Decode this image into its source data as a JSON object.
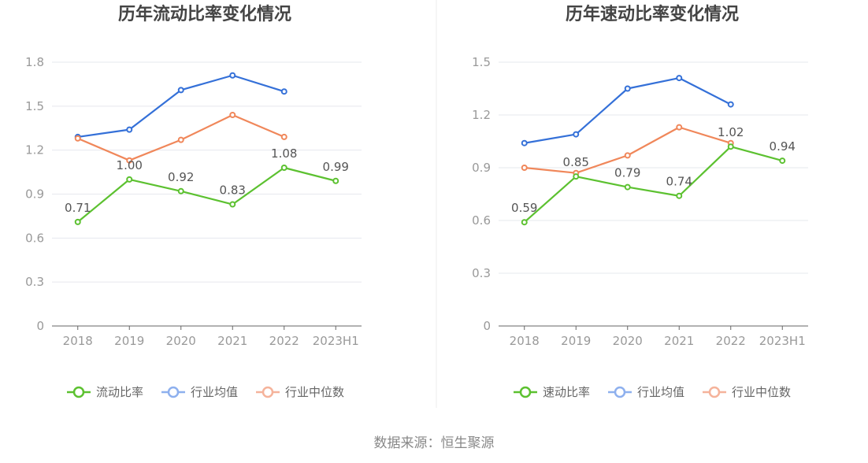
{
  "colors": {
    "company": "#5cc130",
    "industry_avg": "#3470d8",
    "industry_median": "#f0875a",
    "legend_company": "#5cc130",
    "legend_avg": "#8eb0ee",
    "legend_median": "#f5b39b",
    "grid": "#e6e8ee",
    "axis": "#666666",
    "divider": "#eeeeee"
  },
  "source": "数据来源：恒生聚源",
  "chart_data": [
    {
      "type": "line",
      "title": "历年流动比率变化情况",
      "categories": [
        "2018",
        "2019",
        "2020",
        "2021",
        "2022",
        "2023H1"
      ],
      "ylim": [
        0,
        1.8
      ],
      "yticks": [
        "0",
        "0.3",
        "0.6",
        "0.9",
        "1.2",
        "1.5",
        "1.8"
      ],
      "ytick_values": [
        0,
        0.3,
        0.6,
        0.9,
        1.2,
        1.5,
        1.8
      ],
      "grid": true,
      "legend_position": "bottom",
      "series": [
        {
          "name": "流动比率",
          "values": [
            0.71,
            1.0,
            0.92,
            0.83,
            1.08,
            0.99
          ],
          "labels": [
            "0.71",
            "1.00",
            "0.92",
            "0.83",
            "1.08",
            "0.99"
          ]
        },
        {
          "name": "行业均值",
          "values": [
            1.29,
            1.34,
            1.61,
            1.71,
            1.6,
            null
          ]
        },
        {
          "name": "行业中位数",
          "values": [
            1.28,
            1.13,
            1.27,
            1.44,
            1.29,
            null
          ]
        }
      ]
    },
    {
      "type": "line",
      "title": "历年速动比率变化情况",
      "categories": [
        "2018",
        "2019",
        "2020",
        "2021",
        "2022",
        "2023H1"
      ],
      "ylim": [
        0,
        1.5
      ],
      "yticks": [
        "0",
        "0.3",
        "0.6",
        "0.9",
        "1.2",
        "1.5"
      ],
      "ytick_values": [
        0,
        0.3,
        0.6,
        0.9,
        1.2,
        1.5
      ],
      "grid": true,
      "legend_position": "bottom",
      "series": [
        {
          "name": "速动比率",
          "values": [
            0.59,
            0.85,
            0.79,
            0.74,
            1.02,
            0.94
          ],
          "labels": [
            "0.59",
            "0.85",
            "0.79",
            "0.74",
            "1.02",
            "0.94"
          ]
        },
        {
          "name": "行业均值",
          "values": [
            1.04,
            1.09,
            1.35,
            1.41,
            1.26,
            null
          ]
        },
        {
          "name": "行业中位数",
          "values": [
            0.9,
            0.87,
            0.97,
            1.13,
            1.04,
            null
          ]
        }
      ]
    }
  ]
}
